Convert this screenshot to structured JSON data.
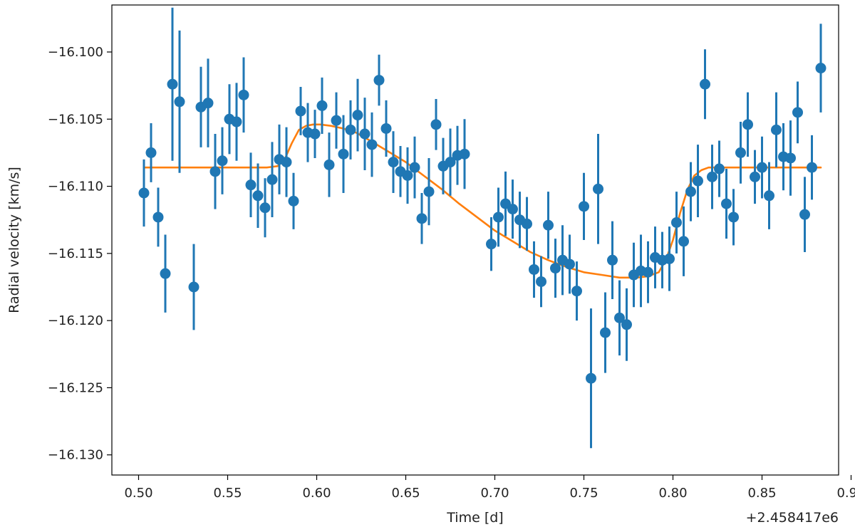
{
  "chart_data": {
    "type": "scatter",
    "title": "",
    "xlabel": "Time [d]",
    "ylabel": "Radial velocity [km/s]",
    "x_offset_label": "+2.458417e6",
    "xlim": [
      0.485,
      0.893
    ],
    "ylim": [
      -16.1315,
      -16.0965
    ],
    "xticks": [
      0.5,
      0.55,
      0.6,
      0.65,
      0.7,
      0.75,
      0.8,
      0.85,
      0.9
    ],
    "xtick_labels": [
      "0.50",
      "0.55",
      "0.60",
      "0.65",
      "0.70",
      "0.75",
      "0.80",
      "0.85",
      "0.90"
    ],
    "yticks": [
      -16.1,
      -16.105,
      -16.11,
      -16.115,
      -16.12,
      -16.125,
      -16.13
    ],
    "ytick_labels": [
      "−16.100",
      "−16.105",
      "−16.110",
      "−16.115",
      "−16.120",
      "−16.125",
      "−16.130"
    ],
    "grid": false,
    "legend": "none",
    "colors": {
      "points": "#1f77b4",
      "model": "#ff7f0e"
    },
    "series": [
      {
        "kind": "errorbar",
        "x": [
          0.503,
          0.507,
          0.511,
          0.515,
          0.519,
          0.523,
          0.531,
          0.535,
          0.539,
          0.543,
          0.547,
          0.551,
          0.555,
          0.559,
          0.563,
          0.567,
          0.571,
          0.575,
          0.579,
          0.583,
          0.587,
          0.591,
          0.595,
          0.599,
          0.603,
          0.607,
          0.611,
          0.615,
          0.619,
          0.623,
          0.627,
          0.631,
          0.635,
          0.639,
          0.643,
          0.647,
          0.651,
          0.655,
          0.659,
          0.663,
          0.667,
          0.671,
          0.675,
          0.679,
          0.683,
          0.698,
          0.702,
          0.706,
          0.71,
          0.714,
          0.718,
          0.722,
          0.726,
          0.73,
          0.734,
          0.738,
          0.742,
          0.746,
          0.75,
          0.754,
          0.758,
          0.762,
          0.766,
          0.77,
          0.774,
          0.778,
          0.782,
          0.786,
          0.79,
          0.794,
          0.798,
          0.802,
          0.806,
          0.81,
          0.814,
          0.818,
          0.822,
          0.826,
          0.83,
          0.834,
          0.838,
          0.842,
          0.846,
          0.85,
          0.854,
          0.858,
          0.862,
          0.866,
          0.87,
          0.874,
          0.878,
          0.883
        ],
        "y": [
          -16.1105,
          -16.1075,
          -16.1123,
          -16.1165,
          -16.1024,
          -16.1037,
          -16.1175,
          -16.1041,
          -16.1038,
          -16.1089,
          -16.1081,
          -16.105,
          -16.1052,
          -16.1032,
          -16.1099,
          -16.1107,
          -16.1116,
          -16.1095,
          -16.108,
          -16.1082,
          -16.1111,
          -16.1044,
          -16.106,
          -16.1061,
          -16.104,
          -16.1084,
          -16.1051,
          -16.1076,
          -16.1058,
          -16.1047,
          -16.1061,
          -16.1069,
          -16.1021,
          -16.1057,
          -16.1082,
          -16.1089,
          -16.1092,
          -16.1086,
          -16.1124,
          -16.1104,
          -16.1054,
          -16.1085,
          -16.1082,
          -16.1077,
          -16.1076,
          -16.1143,
          -16.1123,
          -16.1113,
          -16.1117,
          -16.1125,
          -16.1128,
          -16.1162,
          -16.1171,
          -16.1129,
          -16.1161,
          -16.1155,
          -16.1158,
          -16.1178,
          -16.1115,
          -16.1243,
          -16.1102,
          -16.1209,
          -16.1155,
          -16.1198,
          -16.1203,
          -16.1166,
          -16.1163,
          -16.1164,
          -16.1153,
          -16.1155,
          -16.1154,
          -16.1127,
          -16.1141,
          -16.1104,
          -16.1096,
          -16.1024,
          -16.1093,
          -16.1087,
          -16.1113,
          -16.1123,
          -16.1075,
          -16.1054,
          -16.1093,
          -16.1086,
          -16.1107,
          -16.1058,
          -16.1078,
          -16.1079,
          -16.1045,
          -16.1121,
          -16.1086,
          -16.1012
        ],
        "yerr": [
          0.0025,
          0.0022,
          0.0022,
          0.0029,
          0.0057,
          0.0053,
          0.0032,
          0.003,
          0.0033,
          0.0028,
          0.0025,
          0.0026,
          0.0029,
          0.0028,
          0.0024,
          0.0024,
          0.0022,
          0.0028,
          0.0026,
          0.0026,
          0.0021,
          0.0018,
          0.0022,
          0.0018,
          0.0021,
          0.0024,
          0.0021,
          0.0029,
          0.0022,
          0.0027,
          0.0027,
          0.0024,
          0.0019,
          0.0021,
          0.0023,
          0.0019,
          0.0021,
          0.0023,
          0.0019,
          0.0025,
          0.0019,
          0.0021,
          0.0025,
          0.0022,
          0.0026,
          0.002,
          0.0022,
          0.0024,
          0.0022,
          0.0021,
          0.002,
          0.0021,
          0.0019,
          0.0025,
          0.0022,
          0.0026,
          0.0022,
          0.0022,
          0.0025,
          0.0052,
          0.0041,
          0.003,
          0.0029,
          0.0028,
          0.0027,
          0.0024,
          0.0027,
          0.0023,
          0.0023,
          0.0021,
          0.0024,
          0.0023,
          0.0026,
          0.0022,
          0.0027,
          0.0026,
          0.0024,
          0.0021,
          0.0026,
          0.0021,
          0.0023,
          0.0024,
          0.002,
          0.0023,
          0.0025,
          0.0028,
          0.0025,
          0.0028,
          0.0023,
          0.0028,
          0.0024,
          0.0033
        ]
      },
      {
        "kind": "line",
        "x": [
          0.503,
          0.52,
          0.54,
          0.56,
          0.572,
          0.578,
          0.582,
          0.586,
          0.59,
          0.594,
          0.598,
          0.602,
          0.608,
          0.615,
          0.622,
          0.63,
          0.64,
          0.65,
          0.66,
          0.67,
          0.68,
          0.69,
          0.7,
          0.71,
          0.72,
          0.73,
          0.74,
          0.75,
          0.76,
          0.77,
          0.78,
          0.786,
          0.792,
          0.796,
          0.8,
          0.804,
          0.808,
          0.812,
          0.816,
          0.82,
          0.83,
          0.85,
          0.87,
          0.883
        ],
        "y": [
          -16.1086,
          -16.1086,
          -16.1086,
          -16.1086,
          -16.1086,
          -16.1085,
          -16.108,
          -16.1068,
          -16.1058,
          -16.1055,
          -16.1054,
          -16.1054,
          -16.1055,
          -16.1057,
          -16.106,
          -16.1066,
          -16.1074,
          -16.1082,
          -16.1092,
          -16.1102,
          -16.1113,
          -16.1123,
          -16.1133,
          -16.1141,
          -16.1149,
          -16.1155,
          -16.116,
          -16.1164,
          -16.1166,
          -16.1168,
          -16.1168,
          -16.1167,
          -16.1164,
          -16.1155,
          -16.114,
          -16.112,
          -16.1103,
          -16.1092,
          -16.1088,
          -16.1086,
          -16.1086,
          -16.1086,
          -16.1086,
          -16.1086
        ]
      }
    ]
  }
}
